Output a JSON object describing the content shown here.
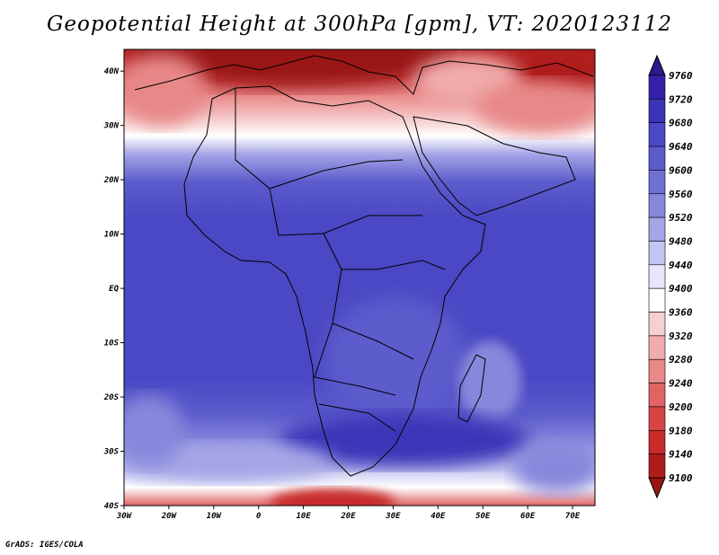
{
  "title": "Geopotential Height at 300hPa [gpm], VT: 2020123112",
  "credit": "GrADS: IGES/COLA",
  "map": {
    "lon_labels": [
      "30W",
      "20W",
      "10W",
      "0",
      "10E",
      "20E",
      "30E",
      "40E",
      "50E",
      "60E",
      "70E"
    ],
    "lat_labels": [
      "40N",
      "30N",
      "20N",
      "10N",
      "EQ",
      "10S",
      "20S",
      "30S",
      "40S"
    ],
    "lon_range": [
      -30,
      75
    ],
    "lat_range": [
      -40,
      44
    ],
    "field": "300hPa geopotential height",
    "units": "gpm"
  },
  "colorbar": {
    "levels": [
      "9760",
      "9720",
      "9680",
      "9640",
      "9600",
      "9560",
      "9520",
      "9480",
      "9440",
      "9400",
      "9360",
      "9320",
      "9280",
      "9240",
      "9200",
      "9180",
      "9140",
      "9100"
    ],
    "colors": [
      "#2a1a8c",
      "#3322a8",
      "#3a34b8",
      "#4a48c4",
      "#5c5ccc",
      "#6f70d4",
      "#8788dc",
      "#a4a5e6",
      "#c4c5f0",
      "#e6e6fa",
      "#ffffff",
      "#f6d0d0",
      "#f0acac",
      "#e88888",
      "#e06464",
      "#d84444",
      "#c82a2a",
      "#b01c1c",
      "#9a1414"
    ]
  }
}
